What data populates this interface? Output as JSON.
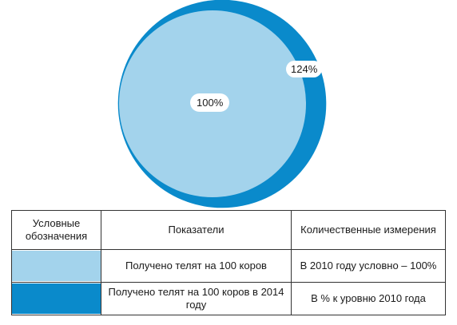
{
  "chart_data": {
    "type": "area",
    "series": [
      {
        "label": "100%",
        "value": 100,
        "color": "#a3d3ec"
      },
      {
        "label": "124%",
        "value": 124,
        "color": "#0a8acb"
      }
    ]
  },
  "legend_table": {
    "headers": [
      "Условные обозначения",
      "Показатели",
      "Количественные измерения"
    ],
    "rows": [
      {
        "color": "#a3d3ec",
        "indicator": "Получено телят на 100 коров",
        "measure": "В 2010 году условно – 100%"
      },
      {
        "color": "#0a8acb",
        "indicator": "Получено телят на 100 коров в 2014 году",
        "measure": "В % к  уровню 2010 года"
      }
    ]
  }
}
